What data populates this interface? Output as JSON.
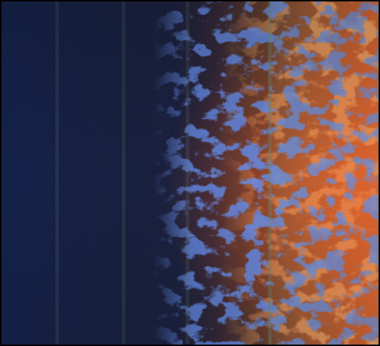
{
  "image": {
    "kind": "false-color satellite composite",
    "palette": {
      "deep_blue": "#0b1a3e",
      "navy": "#14214a",
      "blue_cloud": "#1f44b8",
      "bright_blue": "#2a5be0",
      "brown_transition": "#3a2a32",
      "rust": "#8a4a2a",
      "orange": "#d4521c",
      "bright_orange": "#ff5a1a",
      "strip_sheen": "#6a8070",
      "border": "#000000"
    },
    "strip_count": 6,
    "blue_field_fraction": 0.45,
    "orange_field_fraction": 0.35
  }
}
